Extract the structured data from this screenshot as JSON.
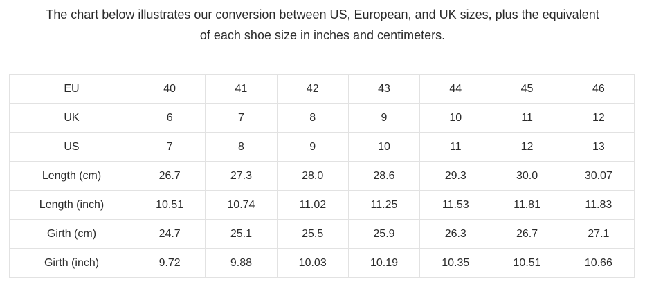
{
  "page": {
    "intro_line1": "The chart below illustrates our conversion between US, European, and UK sizes, plus the equivalent",
    "intro_line2": "of each shoe size in inches and centimeters."
  },
  "table": {
    "rows": [
      {
        "label": "EU",
        "values": [
          "40",
          "41",
          "42",
          "43",
          "44",
          "45",
          "46"
        ]
      },
      {
        "label": "UK",
        "values": [
          "6",
          "7",
          "8",
          "9",
          "10",
          "11",
          "12"
        ]
      },
      {
        "label": "US",
        "values": [
          "7",
          "8",
          "9",
          "10",
          "11",
          "12",
          "13"
        ]
      },
      {
        "label": "Length (cm)",
        "values": [
          "26.7",
          "27.3",
          "28.0",
          "28.6",
          "29.3",
          "30.0",
          "30.07"
        ]
      },
      {
        "label": "Length (inch)",
        "values": [
          "10.51",
          "10.74",
          "11.02",
          "11.25",
          "11.53",
          "11.81",
          "11.83"
        ]
      },
      {
        "label": "Girth (cm)",
        "values": [
          "24.7",
          "25.1",
          "25.5",
          "25.9",
          "26.3",
          "26.7",
          "27.1"
        ]
      },
      {
        "label": "Girth (inch)",
        "values": [
          "9.72",
          "9.88",
          "10.03",
          "10.19",
          "10.35",
          "10.51",
          "10.66"
        ]
      }
    ]
  },
  "colors": {
    "background": "#ffffff",
    "text": "#2b2b2b",
    "table_border": "#e2e2e2"
  }
}
